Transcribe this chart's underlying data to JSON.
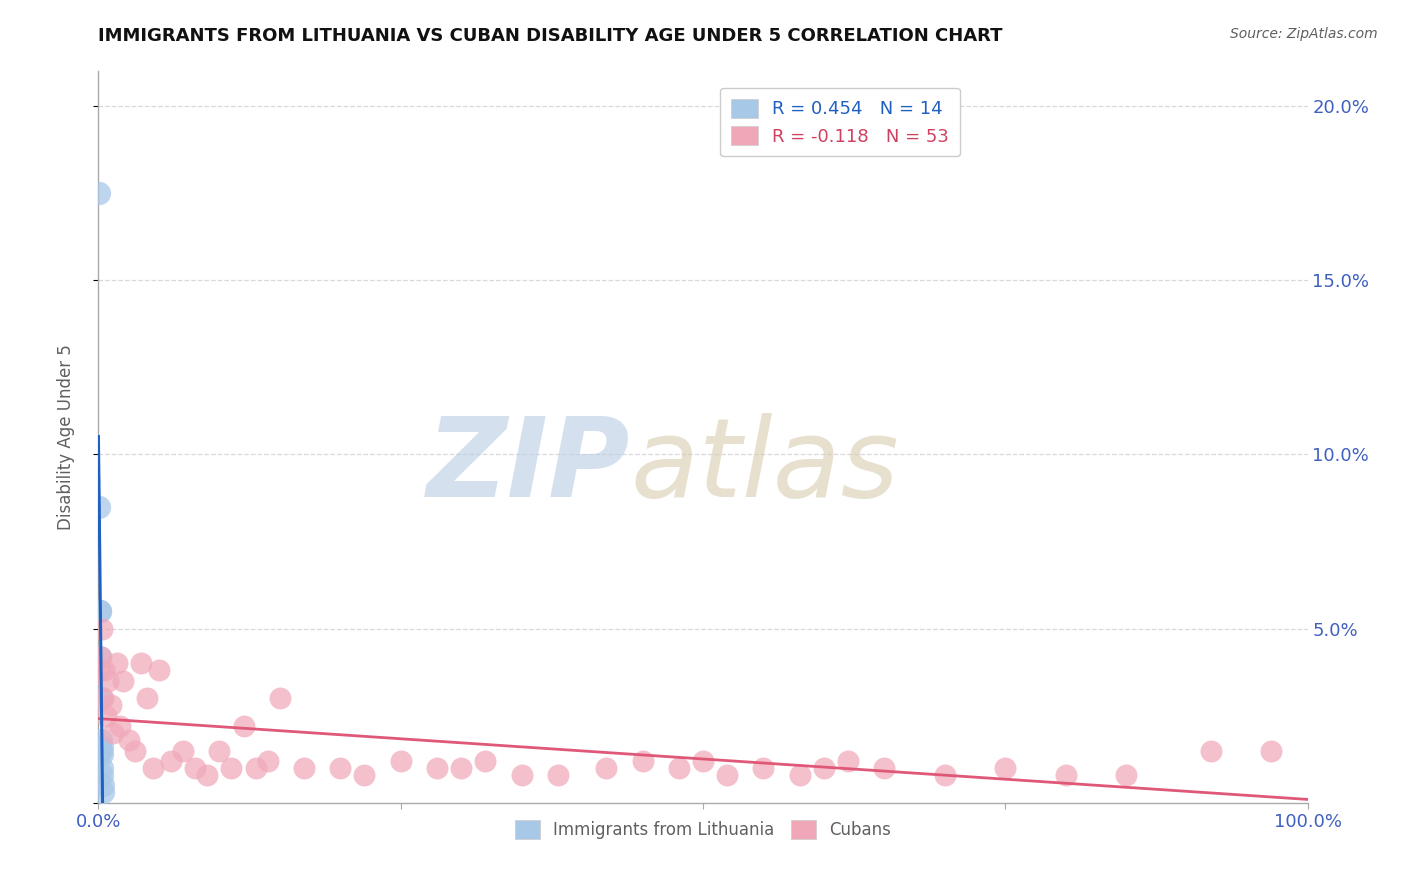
{
  "title": "IMMIGRANTS FROM LITHUANIA VS CUBAN DISABILITY AGE UNDER 5 CORRELATION CHART",
  "source_text": "Source: ZipAtlas.com",
  "ylabel": "Disability Age Under 5",
  "xlim": [
    0,
    1.0
  ],
  "ylim": [
    0,
    0.21
  ],
  "xticks": [
    0.0,
    0.25,
    0.5,
    0.75,
    1.0
  ],
  "xticklabels": [
    "0.0%",
    "",
    "",
    "",
    "100.0%"
  ],
  "yticks": [
    0.0,
    0.05,
    0.1,
    0.15,
    0.2
  ],
  "yticklabels_right": [
    "",
    "5.0%",
    "10.0%",
    "15.0%",
    "20.0%"
  ],
  "legend_r1": "R = 0.454   N = 14",
  "legend_r2": "R = -0.118   N = 53",
  "blue_scatter_color": "#a8c8e8",
  "pink_scatter_color": "#f0a8b8",
  "blue_line_color": "#2060c0",
  "blue_dash_color": "#6090d0",
  "pink_line_color": "#e05878",
  "grid_color": "#cccccc",
  "grid_dash_color": "#d0d0d0",
  "tick_label_color": "#4060c0",
  "ylabel_color": "#606060",
  "title_color": "#111111",
  "source_color": "#606060",
  "legend_blue_text_color": "#2060c0",
  "legend_pink_text_color": "#d04060",
  "bottom_legend_color": "#606060",
  "lithuania_x": [
    0.0005,
    0.0008,
    0.001,
    0.001,
    0.0015,
    0.002,
    0.002,
    0.002,
    0.003,
    0.003,
    0.003,
    0.003,
    0.004,
    0.004
  ],
  "lithuania_y": [
    0.175,
    0.085,
    0.055,
    0.042,
    0.055,
    0.03,
    0.018,
    0.015,
    0.016,
    0.014,
    0.01,
    0.008,
    0.005,
    0.003
  ],
  "cuban_x": [
    0.001,
    0.002,
    0.003,
    0.004,
    0.005,
    0.006,
    0.008,
    0.01,
    0.012,
    0.015,
    0.018,
    0.02,
    0.025,
    0.03,
    0.035,
    0.04,
    0.045,
    0.05,
    0.06,
    0.07,
    0.08,
    0.09,
    0.1,
    0.11,
    0.12,
    0.13,
    0.14,
    0.15,
    0.17,
    0.2,
    0.22,
    0.25,
    0.28,
    0.3,
    0.32,
    0.35,
    0.38,
    0.42,
    0.45,
    0.48,
    0.5,
    0.52,
    0.55,
    0.58,
    0.6,
    0.62,
    0.65,
    0.7,
    0.75,
    0.8,
    0.85,
    0.92,
    0.97
  ],
  "cuban_y": [
    0.038,
    0.042,
    0.05,
    0.03,
    0.038,
    0.025,
    0.035,
    0.028,
    0.02,
    0.04,
    0.022,
    0.035,
    0.018,
    0.015,
    0.04,
    0.03,
    0.01,
    0.038,
    0.012,
    0.015,
    0.01,
    0.008,
    0.015,
    0.01,
    0.022,
    0.01,
    0.012,
    0.03,
    0.01,
    0.01,
    0.008,
    0.012,
    0.01,
    0.01,
    0.012,
    0.008,
    0.008,
    0.01,
    0.012,
    0.01,
    0.012,
    0.008,
    0.01,
    0.008,
    0.01,
    0.012,
    0.01,
    0.008,
    0.01,
    0.008,
    0.008,
    0.015,
    0.015
  ],
  "watermark_zip_color": "#b8cce4",
  "watermark_atlas_color": "#d4c8a8"
}
